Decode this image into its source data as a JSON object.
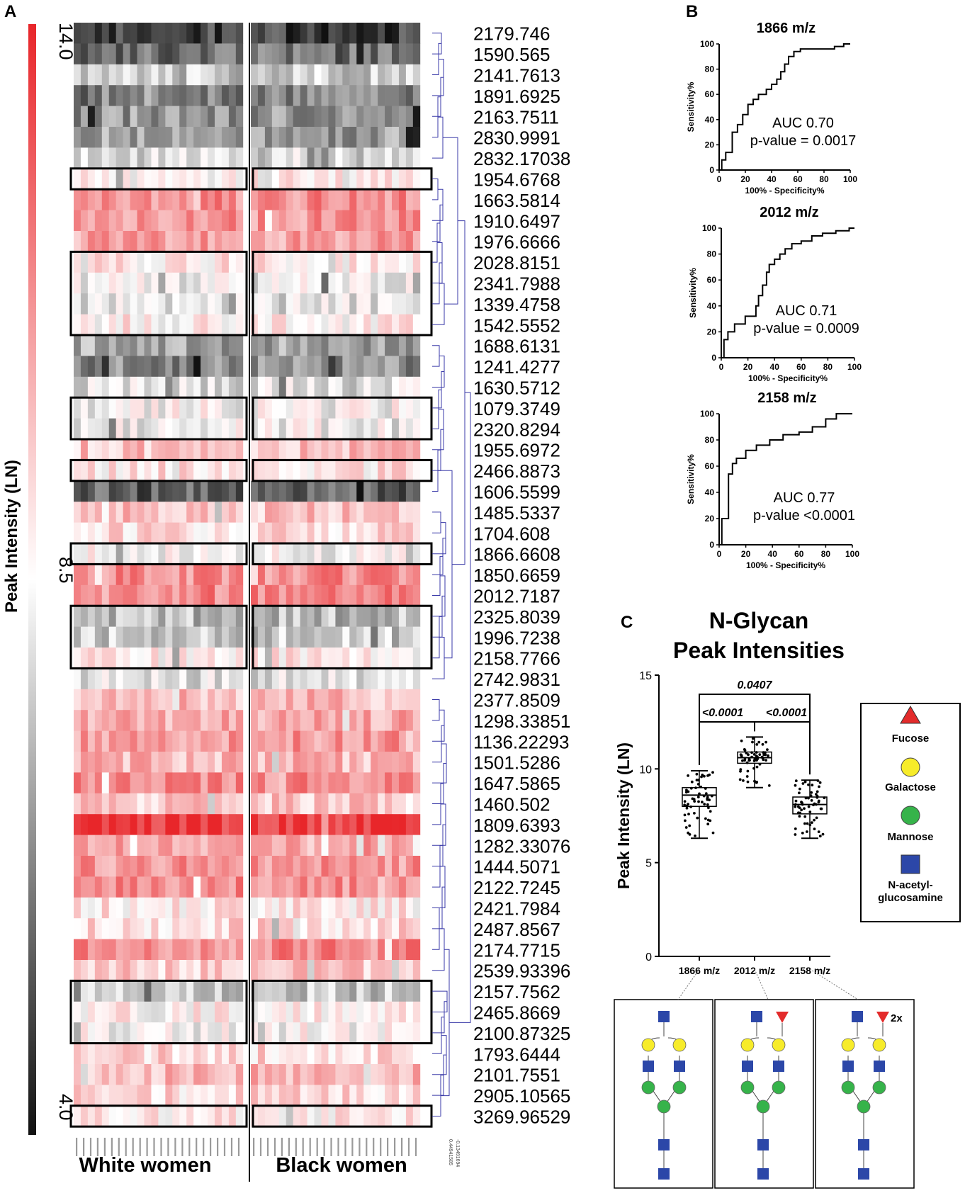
{
  "panels": {
    "a": "A",
    "b": "B",
    "c": "C"
  },
  "heatmap": {
    "scale_label": "Peak Intensity (LN)",
    "scale_ticks": [
      "14.0",
      "8.5",
      "4.0"
    ],
    "scale_range": [
      4.0,
      14.0
    ],
    "group_labels": [
      "White women",
      "Black women"
    ],
    "mz_labels": [
      "2179.746",
      "1590.565",
      "2141.7613",
      "1891.6925",
      "2163.7511",
      "2830.9991",
      "2832.17038",
      "1954.6768",
      "1663.5814",
      "1910.6497",
      "1976.6666",
      "2028.8151",
      "2341.7988",
      "1339.4758",
      "1542.5552",
      "1688.6131",
      "1241.4277",
      "1630.5712",
      "1079.3749",
      "2320.8294",
      "1955.6972",
      "2466.8873",
      "1606.5599",
      "1485.5337",
      "1704.608",
      "1866.6608",
      "1850.6659",
      "2012.7187",
      "2325.8039",
      "1996.7238",
      "2158.7766",
      "2742.9831",
      "2377.8509",
      "1298.33851",
      "1136.22293",
      "1501.5286",
      "1647.5865",
      "1460.502",
      "1809.6393",
      "1282.33076",
      "1444.5071",
      "2122.7245",
      "2421.7984",
      "2487.8567",
      "2174.7715",
      "2539.93396",
      "2157.7562",
      "2465.8669",
      "2100.87325",
      "1793.6444",
      "2101.7551",
      "2905.10565",
      "3269.96529"
    ],
    "row_mean_intensity": [
      5.0,
      6.0,
      8.0,
      6.6,
      6.8,
      7.0,
      8.2,
      9.3,
      11.6,
      11.4,
      11.2,
      9.5,
      8.6,
      8.4,
      9.4,
      7.2,
      6.6,
      8.3,
      8.9,
      8.8,
      10.4,
      9.6,
      5.6,
      10.4,
      9.8,
      9.0,
      11.6,
      11.8,
      7.6,
      8.0,
      9.4,
      8.5,
      10.6,
      11.0,
      11.4,
      10.6,
      11.6,
      10.3,
      13.6,
      11.2,
      11.4,
      11.6,
      9.5,
      9.9,
      11.7,
      10.2,
      7.8,
      9.2,
      9.0,
      9.9,
      10.6,
      9.8,
      9.4
    ],
    "highlighted_blocks": [
      {
        "first_row": 7,
        "last_row": 7
      },
      {
        "first_row": 11,
        "last_row": 14
      },
      {
        "first_row": 18,
        "last_row": 19
      },
      {
        "first_row": 21,
        "last_row": 21
      },
      {
        "first_row": 25,
        "last_row": 25
      },
      {
        "first_row": 28,
        "last_row": 30
      },
      {
        "first_row": 46,
        "last_row": 48
      },
      {
        "first_row": 52,
        "last_row": 52
      }
    ],
    "dendro_scale": [
      "0.44941585",
      "-0.13491694"
    ]
  },
  "roc_xlabel": "100% - Specificity%",
  "roc_ylabel": "Sensitivity%",
  "chart_data": [
    {
      "type": "line",
      "title": "1866 m/z",
      "xlabel": "100% - Specificity%",
      "ylabel": "Sensitivity%",
      "xlim": [
        0,
        100
      ],
      "ylim": [
        0,
        100
      ],
      "ticks": [
        0,
        20,
        40,
        60,
        80,
        100
      ],
      "auc_text": "AUC 0.70",
      "p_text": "p-value = 0.0017",
      "x": [
        0,
        2,
        2,
        5,
        5,
        10,
        10,
        14,
        14,
        18,
        18,
        22,
        22,
        26,
        26,
        30,
        30,
        36,
        36,
        40,
        40,
        44,
        44,
        47,
        47,
        50,
        50,
        53,
        53,
        57,
        57,
        62,
        62,
        88,
        88,
        95,
        95,
        100
      ],
      "y": [
        0,
        0,
        8,
        8,
        14,
        14,
        30,
        30,
        36,
        36,
        44,
        44,
        52,
        52,
        56,
        56,
        60,
        60,
        64,
        64,
        68,
        68,
        72,
        72,
        78,
        78,
        84,
        84,
        90,
        90,
        94,
        94,
        96,
        96,
        98,
        98,
        100,
        100
      ]
    },
    {
      "type": "line",
      "title": "2012 m/z",
      "xlabel": "100% - Specificity%",
      "ylabel": "Sensitivity%",
      "xlim": [
        0,
        100
      ],
      "ylim": [
        0,
        100
      ],
      "ticks": [
        0,
        20,
        40,
        60,
        80,
        100
      ],
      "auc_text": "AUC 0.71",
      "p_text": "p-value = 0.0009",
      "x": [
        0,
        2,
        2,
        5,
        5,
        10,
        10,
        18,
        18,
        26,
        26,
        28,
        28,
        31,
        31,
        34,
        34,
        36,
        36,
        40,
        40,
        44,
        44,
        48,
        48,
        53,
        53,
        60,
        60,
        68,
        68,
        76,
        76,
        86,
        86,
        96,
        96,
        100
      ],
      "y": [
        0,
        0,
        14,
        14,
        20,
        20,
        26,
        26,
        32,
        32,
        40,
        40,
        48,
        48,
        56,
        56,
        66,
        66,
        72,
        72,
        76,
        76,
        80,
        80,
        84,
        84,
        88,
        88,
        90,
        90,
        94,
        94,
        96,
        96,
        98,
        98,
        100,
        100
      ]
    },
    {
      "type": "line",
      "title": "2158 m/z",
      "xlabel": "100% - Specificity%",
      "ylabel": "Sensitivity%",
      "xlim": [
        0,
        100
      ],
      "ylim": [
        0,
        100
      ],
      "ticks": [
        0,
        20,
        40,
        60,
        80,
        100
      ],
      "auc_text": "AUC 0.77",
      "p_text": "p-value <0.0001",
      "x": [
        0,
        2,
        2,
        7,
        7,
        10,
        10,
        13,
        13,
        20,
        20,
        28,
        28,
        38,
        38,
        48,
        48,
        60,
        60,
        70,
        70,
        80,
        80,
        88,
        88,
        100
      ],
      "y": [
        0,
        0,
        20,
        20,
        54,
        54,
        62,
        62,
        66,
        66,
        72,
        72,
        76,
        76,
        80,
        80,
        84,
        84,
        86,
        86,
        90,
        90,
        96,
        96,
        100,
        100
      ]
    },
    {
      "type": "box",
      "title": "N-Glycan\nPeak Intensities",
      "title_lines": [
        "N-Glycan",
        "Peak Intensities"
      ],
      "ylabel": "Peak  Intensity (LN)",
      "ylim": [
        0,
        15
      ],
      "yticks": [
        0,
        5,
        10,
        15
      ],
      "categories": [
        "1866 m/z",
        "2012 m/z",
        "2158 m/z"
      ],
      "boxes": [
        {
          "min": 6.3,
          "q1": 8.0,
          "median": 8.6,
          "q3": 9.0,
          "max": 9.9
        },
        {
          "min": 9.0,
          "q1": 10.3,
          "median": 10.6,
          "q3": 10.9,
          "max": 11.7
        },
        {
          "min": 6.3,
          "q1": 7.6,
          "median": 8.1,
          "q3": 8.5,
          "max": 9.4
        }
      ],
      "comparisons": [
        {
          "a": 0,
          "b": 2,
          "p": "0.0407"
        },
        {
          "a": 0,
          "b": 1,
          "p": "<0.0001"
        },
        {
          "a": 1,
          "b": 2,
          "p": "<0.0001"
        }
      ]
    }
  ],
  "legend": {
    "items": [
      "Fucose",
      "Galactose",
      "Mannose",
      "N-acetyl-\nglucosamine"
    ],
    "lines": [
      [
        "Fucose"
      ],
      [
        "Galactose"
      ],
      [
        "Mannose"
      ],
      [
        "N-acetyl-",
        "glucosamine"
      ]
    ]
  },
  "colors": {
    "fucose": "#e32b2b",
    "galactose": "#f7ec2a",
    "mannose": "#36b34a",
    "glcnac": "#2c47a8",
    "heat_high": "#e82a2a",
    "heat_low": "#111111",
    "dendro": "#3a3aa8"
  },
  "structures": [
    {
      "label": "",
      "fucose_count": 0
    },
    {
      "label": "",
      "fucose_count": 1
    },
    {
      "label": "2x",
      "fucose_count": 2
    }
  ]
}
